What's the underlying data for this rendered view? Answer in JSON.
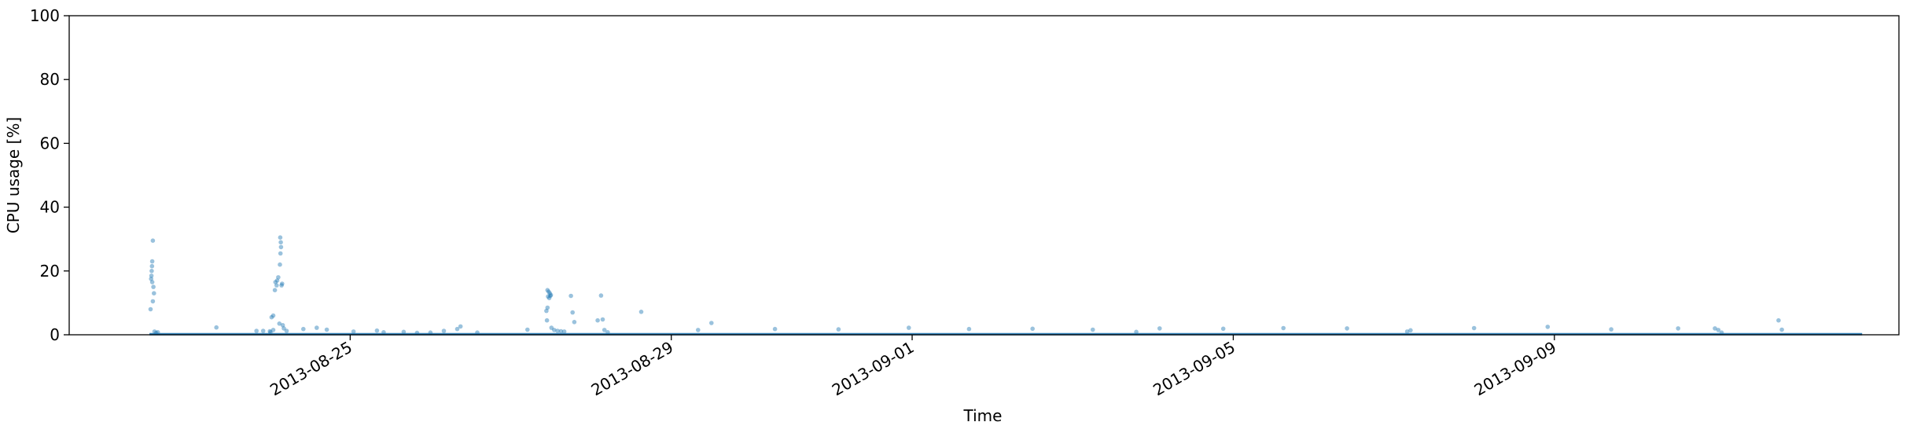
{
  "chart_data": {
    "type": "scatter",
    "title": "",
    "xlabel": "Time",
    "ylabel": "CPU usage [%]",
    "ylim": [
      0,
      100
    ],
    "xlim": [
      "2013-08-21T12:00",
      "2013-09-13T07:00"
    ],
    "x_ticks": [
      "2013-08-25",
      "2013-08-29",
      "2013-09-01",
      "2013-09-05",
      "2013-09-09"
    ],
    "y_ticks": [
      0,
      20,
      40,
      60,
      80,
      100
    ],
    "x_tick_rotation": 30,
    "grid": false,
    "marker_color": "#1f77b4",
    "marker_alpha": 0.45,
    "baseline": {
      "x_start": "2013-08-22T12:00",
      "x_end": "2013-09-12T20:00",
      "y": 0.2
    },
    "points": [
      [
        "2013-08-22T13:00",
        29.5
      ],
      [
        "2013-08-22T12:50",
        23
      ],
      [
        "2013-08-22T12:45",
        21.5
      ],
      [
        "2013-08-22T12:40",
        20
      ],
      [
        "2013-08-22T12:35",
        18.5
      ],
      [
        "2013-08-22T12:30",
        17.5
      ],
      [
        "2013-08-22T12:50",
        16.5
      ],
      [
        "2013-08-22T13:10",
        15
      ],
      [
        "2013-08-22T13:20",
        13
      ],
      [
        "2013-08-22T13:00",
        10.5
      ],
      [
        "2013-08-22T12:20",
        8
      ],
      [
        "2013-08-22T13:30",
        1
      ],
      [
        "2013-08-22T14:00",
        0.6
      ],
      [
        "2013-08-22T14:30",
        0.8
      ],
      [
        "2013-08-23T08:00",
        2.3
      ],
      [
        "2013-08-23T20:00",
        1.2
      ],
      [
        "2013-08-23T22:00",
        1.2
      ],
      [
        "2013-08-24T00:00",
        1.1
      ],
      [
        "2013-08-24T00:30",
        5.5
      ],
      [
        "2013-08-24T01:00",
        6
      ],
      [
        "2013-08-24T01:30",
        14
      ],
      [
        "2013-08-24T02:00",
        15.5
      ],
      [
        "2013-08-24T01:40",
        16.5
      ],
      [
        "2013-08-24T02:10",
        17
      ],
      [
        "2013-08-24T02:30",
        18
      ],
      [
        "2013-08-24T03:00",
        22
      ],
      [
        "2013-08-24T03:10",
        25.5
      ],
      [
        "2013-08-24T03:20",
        27.5
      ],
      [
        "2013-08-24T03:15",
        29
      ],
      [
        "2013-08-24T03:05",
        30.5
      ],
      [
        "2013-08-24T03:40",
        16
      ],
      [
        "2013-08-24T03:30",
        15.5
      ],
      [
        "2013-08-24T02:50",
        3.5
      ],
      [
        "2013-08-24T03:50",
        3
      ],
      [
        "2013-08-24T04:10",
        2
      ],
      [
        "2013-08-24T05:00",
        1.2
      ],
      [
        "2013-08-24T01:00",
        1.5
      ],
      [
        "2013-08-24T00:10",
        0.8
      ],
      [
        "2013-08-24T10:00",
        1.8
      ],
      [
        "2013-08-24T14:00",
        2.2
      ],
      [
        "2013-08-24T17:00",
        1.6
      ],
      [
        "2013-08-25T01:00",
        1.0
      ],
      [
        "2013-08-25T08:00",
        1.3
      ],
      [
        "2013-08-25T10:00",
        0.8
      ],
      [
        "2013-08-25T16:00",
        0.9
      ],
      [
        "2013-08-25T20:00",
        0.6
      ],
      [
        "2013-08-26T00:00",
        0.7
      ],
      [
        "2013-08-26T04:00",
        1.2
      ],
      [
        "2013-08-26T08:00",
        1.8
      ],
      [
        "2013-08-26T09:00",
        2.6
      ],
      [
        "2013-08-26T14:00",
        0.7
      ],
      [
        "2013-08-27T05:00",
        1.6
      ],
      [
        "2013-08-27T11:00",
        14
      ],
      [
        "2013-08-27T11:20",
        13.5
      ],
      [
        "2013-08-27T11:40",
        13
      ],
      [
        "2013-08-27T12:00",
        12.5
      ],
      [
        "2013-08-27T11:10",
        12
      ],
      [
        "2013-08-27T11:30",
        11.5
      ],
      [
        "2013-08-27T11:50",
        12.2
      ],
      [
        "2013-08-27T11:00",
        8.5
      ],
      [
        "2013-08-27T10:40",
        7.5
      ],
      [
        "2013-08-27T10:50",
        4.5
      ],
      [
        "2013-08-27T12:10",
        2.2
      ],
      [
        "2013-08-27T13:00",
        1.5
      ],
      [
        "2013-08-27T14:00",
        1.2
      ],
      [
        "2013-08-27T15:00",
        1.1
      ],
      [
        "2013-08-27T16:00",
        1.0
      ],
      [
        "2013-08-27T18:00",
        12.2
      ],
      [
        "2013-08-27T18:30",
        7
      ],
      [
        "2013-08-27T19:00",
        4
      ],
      [
        "2013-08-28T02:00",
        4.5
      ],
      [
        "2013-08-28T03:00",
        12.3
      ],
      [
        "2013-08-28T03:30",
        4.8
      ],
      [
        "2013-08-28T04:00",
        1.5
      ],
      [
        "2013-08-28T05:00",
        0.8
      ],
      [
        "2013-08-28T15:00",
        7.2
      ],
      [
        "2013-08-29T08:00",
        1.5
      ],
      [
        "2013-08-29T12:00",
        3.7
      ],
      [
        "2013-08-30T07:00",
        1.8
      ],
      [
        "2013-08-31T02:00",
        1.7
      ],
      [
        "2013-08-31T23:00",
        2.2
      ],
      [
        "2013-09-01T17:00",
        1.8
      ],
      [
        "2013-09-02T12:00",
        1.9
      ],
      [
        "2013-09-03T06:00",
        1.6
      ],
      [
        "2013-09-03T19:00",
        0.9
      ],
      [
        "2013-09-04T02:00",
        2.0
      ],
      [
        "2013-09-04T21:00",
        1.9
      ],
      [
        "2013-09-05T15:00",
        2.1
      ],
      [
        "2013-09-06T10:00",
        2.0
      ],
      [
        "2013-09-07T04:00",
        1.0
      ],
      [
        "2013-09-07T05:00",
        1.4
      ],
      [
        "2013-09-08T00:00",
        2.1
      ],
      [
        "2013-09-08T22:00",
        2.5
      ],
      [
        "2013-09-09T17:00",
        1.7
      ],
      [
        "2013-09-10T13:00",
        2.0
      ],
      [
        "2013-09-11T00:00",
        2.0
      ],
      [
        "2013-09-11T01:00",
        1.5
      ],
      [
        "2013-09-11T02:00",
        0.7
      ],
      [
        "2013-09-11T19:00",
        4.5
      ],
      [
        "2013-09-11T20:00",
        1.6
      ]
    ]
  }
}
